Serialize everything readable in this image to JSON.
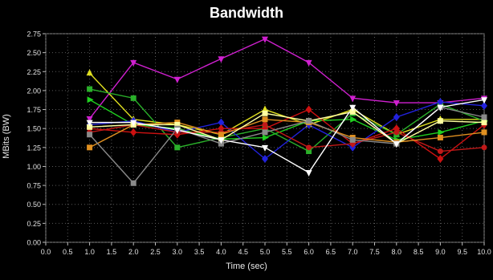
{
  "chart_data": {
    "type": "line",
    "title": "Bandwidth",
    "xlabel": "Time (sec)",
    "ylabel": "MBits (BW)",
    "xlim": [
      0,
      10
    ],
    "ylim": [
      0,
      2.75
    ],
    "x_ticks": [
      "0.0",
      "0.5",
      "1.0",
      "1.5",
      "2.0",
      "2.5",
      "3.0",
      "3.5",
      "4.0",
      "4.5",
      "5.0",
      "5.5",
      "6.0",
      "6.5",
      "7.0",
      "7.5",
      "8.0",
      "8.5",
      "9.0",
      "9.5",
      "10.0"
    ],
    "y_ticks": [
      "0.00",
      "0.25",
      "0.50",
      "0.75",
      "1.00",
      "1.25",
      "1.50",
      "1.75",
      "2.00",
      "2.25",
      "2.50",
      "2.75"
    ],
    "grid": true,
    "x": [
      1,
      2,
      3,
      4,
      5,
      6,
      7,
      8,
      9,
      10
    ],
    "series": [
      {
        "color": "#d020d0",
        "marker": "triangle-down",
        "values": [
          1.63,
          2.37,
          2.15,
          2.42,
          2.68,
          2.37,
          1.9,
          1.84,
          1.84,
          1.9
        ]
      },
      {
        "color": "#e0e020",
        "marker": "triangle-up",
        "values": [
          2.23,
          1.62,
          1.55,
          1.42,
          1.75,
          1.55,
          1.75,
          1.42,
          1.62,
          1.62
        ]
      },
      {
        "color": "#20d020",
        "marker": "triangle-right",
        "values": [
          1.88,
          1.55,
          1.5,
          1.36,
          1.38,
          1.6,
          1.62,
          1.35,
          1.45,
          1.6
        ]
      },
      {
        "color": "#2ab02a",
        "marker": "square",
        "values": [
          2.02,
          1.9,
          1.25,
          1.38,
          1.5,
          1.2,
          1.7,
          1.42,
          1.82,
          1.6
        ]
      },
      {
        "color": "#2222dd",
        "marker": "diamond",
        "values": [
          1.55,
          1.6,
          1.45,
          1.58,
          1.1,
          1.55,
          1.25,
          1.65,
          1.85,
          1.8
        ]
      },
      {
        "color": "#cc1111",
        "marker": "diamond",
        "values": [
          1.5,
          1.45,
          1.42,
          1.5,
          1.5,
          1.75,
          1.3,
          1.5,
          1.1,
          1.55
        ]
      },
      {
        "color": "#c01818",
        "marker": "circle",
        "values": [
          1.45,
          1.55,
          1.45,
          1.45,
          1.55,
          1.25,
          1.3,
          1.45,
          1.2,
          1.25
        ]
      },
      {
        "color": "#e09020",
        "marker": "square",
        "values": [
          1.25,
          1.55,
          1.58,
          1.42,
          1.62,
          1.58,
          1.38,
          1.32,
          1.38,
          1.45
        ]
      },
      {
        "color": "#ffffa0",
        "marker": "square",
        "values": [
          1.52,
          1.55,
          1.55,
          1.35,
          1.7,
          1.6,
          1.72,
          1.3,
          1.6,
          1.58
        ]
      },
      {
        "color": "#8a8a8a",
        "marker": "square",
        "values": [
          1.42,
          0.78,
          1.5,
          1.3,
          1.45,
          1.6,
          1.35,
          1.3,
          1.78,
          1.65
        ]
      },
      {
        "color": "#ffffff",
        "marker": "triangle-down",
        "values": [
          1.58,
          1.58,
          1.48,
          1.35,
          1.25,
          0.92,
          1.78,
          1.3,
          1.78,
          1.88
        ]
      }
    ]
  }
}
